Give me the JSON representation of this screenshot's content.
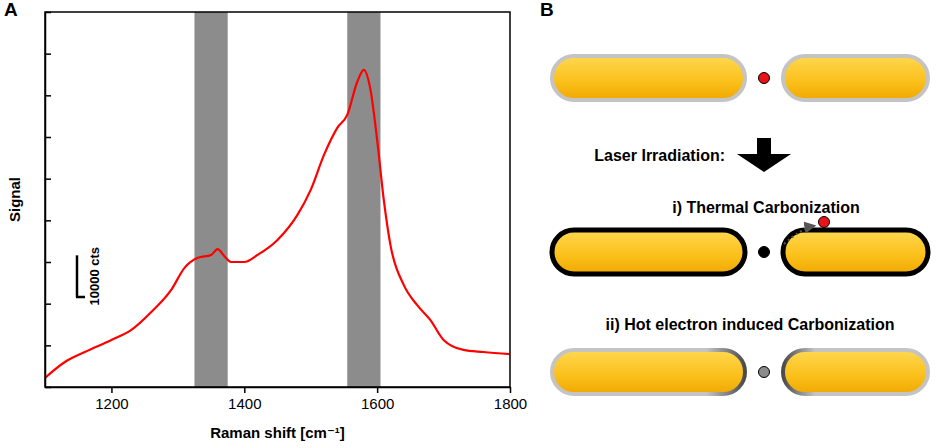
{
  "chart_data": {
    "type": "line",
    "panel_label": "A",
    "x_label": "Raman shift [cm⁻¹]",
    "y_label": "Signal",
    "x": [
      1100,
      1130,
      1160,
      1200,
      1230,
      1260,
      1290,
      1310,
      1330,
      1350,
      1360,
      1370,
      1380,
      1400,
      1420,
      1450,
      1480,
      1500,
      1520,
      1540,
      1555,
      1570,
      1580,
      1590,
      1600,
      1610,
      1620,
      1640,
      1660,
      1680,
      1700,
      1730,
      1760,
      1800
    ],
    "values": [
      2200,
      6000,
      8400,
      11300,
      13700,
      18000,
      23300,
      28600,
      31000,
      31700,
      33100,
      31400,
      30000,
      30000,
      31700,
      35300,
      41300,
      47300,
      55700,
      62200,
      65300,
      73200,
      76100,
      71300,
      59300,
      44900,
      34100,
      24500,
      19700,
      16100,
      11300,
      8900,
      8400,
      7900
    ],
    "color": "#ff0000",
    "xlim": [
      1100,
      1800
    ],
    "xticks": [
      1200,
      1400,
      1600,
      1800
    ],
    "ylim": [
      0,
      90000
    ],
    "yticks": [
      0,
      10000,
      20000,
      30000,
      40000,
      50000,
      60000,
      70000,
      80000,
      90000
    ],
    "tick_labels": "x",
    "bands": [
      [
        1325,
        1375
      ],
      [
        1555,
        1605
      ]
    ],
    "scale_bar": {
      "value": 10000,
      "label": "10000 cts"
    }
  },
  "diagram": {
    "panel_label": "B",
    "arrow_label": "Laser Irradiation:",
    "steps": [
      "i) Thermal Carbonization",
      "ii) Hot electron induced Carbonization"
    ]
  }
}
